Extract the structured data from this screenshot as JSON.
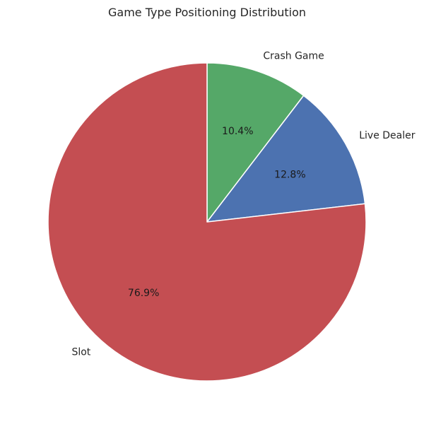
{
  "chart_data": {
    "type": "pie",
    "title": "Game Type Positioning Distribution",
    "start_angle_deg": 90,
    "direction": "clockwise",
    "slices": [
      {
        "label": "Crash Game",
        "value": 10.4,
        "pct_label": "10.4%",
        "color": "#55a868"
      },
      {
        "label": "Live Dealer",
        "value": 12.8,
        "pct_label": "12.8%",
        "color": "#4c72b0"
      },
      {
        "label": "Slot",
        "value": 76.9,
        "pct_label": "76.9%",
        "color": "#c44e52"
      }
    ]
  }
}
